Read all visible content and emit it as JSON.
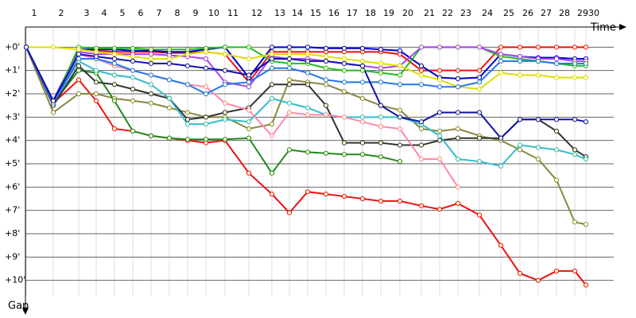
{
  "chart_data": {
    "type": "line",
    "x_label": "Time",
    "y_label": "Gap",
    "x": [
      1,
      35,
      67,
      89,
      112,
      135,
      158,
      181,
      204,
      227,
      251,
      281,
      310,
      332,
      355,
      378,
      401,
      424,
      447,
      471,
      498,
      521,
      544,
      571,
      598,
      622,
      645,
      668,
      691,
      705
    ],
    "xlim": [
      0,
      760
    ],
    "xticks": [
      {
        "value": 1,
        "label": "1"
      },
      {
        "value": 35,
        "label": "2"
      },
      {
        "value": 67,
        "label": "3"
      },
      {
        "value": 89,
        "label": "4"
      },
      {
        "value": 112,
        "label": "5"
      },
      {
        "value": 135,
        "label": "6"
      },
      {
        "value": 158,
        "label": "7"
      },
      {
        "value": 181,
        "label": "8"
      },
      {
        "value": 204,
        "label": "9"
      },
      {
        "value": 227,
        "label": "10"
      },
      {
        "value": 251,
        "label": "11"
      },
      {
        "value": 281,
        "label": "12"
      },
      {
        "value": 310,
        "label": "13"
      },
      {
        "value": 332,
        "label": "14"
      },
      {
        "value": 355,
        "label": "15"
      },
      {
        "value": 378,
        "label": "16"
      },
      {
        "value": 401,
        "label": "17"
      },
      {
        "value": 424,
        "label": "18"
      },
      {
        "value": 447,
        "label": "19"
      },
      {
        "value": 471,
        "label": "20"
      },
      {
        "value": 498,
        "label": "21"
      },
      {
        "value": 521,
        "label": "22"
      },
      {
        "value": 544,
        "label": "23"
      },
      {
        "value": 571,
        "label": "24"
      },
      {
        "value": 598,
        "label": "25"
      },
      {
        "value": 622,
        "label": "26"
      },
      {
        "value": 645,
        "label": "27"
      },
      {
        "value": 668,
        "label": "28"
      },
      {
        "value": 691,
        "label": "29"
      },
      {
        "value": 705,
        "label": "30"
      }
    ],
    "ylim": [
      -1,
      11
    ],
    "yticks": [
      {
        "value": 0,
        "label": "+0'"
      },
      {
        "value": 1,
        "label": "+1'"
      },
      {
        "value": 2,
        "label": "+2'"
      },
      {
        "value": 3,
        "label": "+3'"
      },
      {
        "value": 4,
        "label": "+4'"
      },
      {
        "value": 5,
        "label": "+5'"
      },
      {
        "value": 6,
        "label": "+6'"
      },
      {
        "value": 7,
        "label": "+7'"
      },
      {
        "value": 8,
        "label": "+8'"
      },
      {
        "value": 9,
        "label": "+9'"
      },
      {
        "value": 10,
        "label": "+10'"
      }
    ],
    "grid": true,
    "series": [
      {
        "color": "#ee1111",
        "values": [
          0,
          2.4,
          1.4,
          2.3,
          3.5,
          3.6,
          3.8,
          3.9,
          4.0,
          4.1,
          4.0,
          5.4,
          6.3,
          7.1,
          6.2,
          6.3,
          6.4,
          6.5,
          6.6,
          6.6,
          6.8,
          6.95,
          6.7,
          7.2,
          8.5,
          9.7,
          10.0,
          9.6,
          9.6,
          10.2
        ]
      },
      {
        "color": "#ee1111",
        "values": [
          0,
          2.3,
          0.1,
          0.15,
          0.2,
          0.2,
          0.2,
          0.25,
          0.25,
          0.2,
          0.3,
          1.5,
          0.2,
          0.2,
          0.2,
          0.2,
          0.2,
          0.2,
          0.2,
          0.3,
          1.0,
          1.0,
          1.0,
          1.0,
          0,
          0,
          0,
          0,
          0,
          0
        ]
      },
      {
        "color": "#0000cc",
        "values": [
          0,
          2.3,
          0.1,
          0.1,
          0.1,
          0.15,
          0.15,
          0.2,
          0.2,
          0.1,
          0,
          1.3,
          0,
          0,
          0,
          0.05,
          0.05,
          0.05,
          0.1,
          0.15,
          0.8,
          1.3,
          1.35,
          1.3,
          0.3,
          0.4,
          0.45,
          0.45,
          0.5,
          0.5
        ]
      },
      {
        "color": "#22bb22",
        "values": [
          0,
          2.4,
          0,
          0.05,
          0.05,
          0.05,
          0.1,
          0.1,
          0.1,
          0.05,
          0,
          0,
          0.6,
          0.7,
          0.7,
          0.9,
          1.0,
          1.0,
          1.1,
          1.2,
          0,
          0,
          0,
          0,
          0.4,
          0.5,
          0.6,
          0.7,
          0.8,
          0.8
        ]
      },
      {
        "color": "#888844",
        "values": [
          0,
          2.8,
          2.0,
          2.0,
          2.2,
          2.3,
          2.4,
          2.6,
          2.8,
          3.0,
          3.0,
          3.5,
          3.3,
          1.4,
          1.5,
          1.6,
          1.9,
          2.2,
          2.5,
          2.7,
          3.5,
          3.6,
          3.5,
          3.8,
          4.0,
          4.4,
          4.8,
          5.7,
          7.5,
          7.6
        ]
      },
      {
        "color": "#228822",
        "values": [
          0,
          2.4,
          1.0,
          1.1,
          2.3,
          3.6,
          3.8,
          3.9,
          3.95,
          3.95,
          3.95,
          3.9,
          5.4,
          4.4,
          4.5,
          4.55,
          4.6,
          4.6,
          4.7,
          4.9,
          null,
          null,
          null,
          null,
          null,
          null,
          null,
          null,
          null,
          null
        ]
      },
      {
        "color": "#aa44ee",
        "values": [
          0,
          2.4,
          0.2,
          0.3,
          0.3,
          0.3,
          0.3,
          0.35,
          0.4,
          0.5,
          1.5,
          1.7,
          0.4,
          0.5,
          0.5,
          0.6,
          0.7,
          0.8,
          0.9,
          0.8,
          0,
          0,
          0,
          0,
          0.3,
          0.4,
          0.5,
          0.5,
          0.6,
          0.6
        ]
      },
      {
        "color": "#333333",
        "values": [
          0,
          2.5,
          0.8,
          1.5,
          1.6,
          1.8,
          2.0,
          2.2,
          3.1,
          3.0,
          2.8,
          2.6,
          1.6,
          1.6,
          1.6,
          2.5,
          4.1,
          4.1,
          4.1,
          4.2,
          4.2,
          4.0,
          3.9,
          3.9,
          3.9,
          3.1,
          3.1,
          3.6,
          4.4,
          4.7
        ]
      },
      {
        "color": "#33bbcc",
        "values": [
          0,
          2.4,
          0.6,
          1.0,
          1.2,
          1.3,
          1.6,
          2.2,
          3.3,
          3.3,
          3.1,
          3.2,
          2.2,
          2.4,
          2.6,
          2.9,
          3.0,
          3.0,
          3.0,
          3.0,
          3.3,
          3.8,
          4.8,
          4.9,
          5.1,
          4.2,
          4.3,
          4.4,
          4.6,
          4.8
        ]
      },
      {
        "color": "#dddd00",
        "values": [
          0,
          0,
          0.1,
          0.2,
          0.3,
          0.4,
          0.5,
          0.5,
          0.3,
          0.2,
          0.3,
          0.5,
          0.3,
          0.3,
          0.3,
          0.4,
          0.5,
          0.6,
          0.7,
          0.8,
          1.2,
          1.4,
          1.7,
          1.8,
          1.1,
          1.2,
          1.2,
          1.3,
          1.3,
          1.3
        ]
      },
      {
        "color": "#ff88aa",
        "values": [
          0,
          2.4,
          0.3,
          0.5,
          0.8,
          1.0,
          1.2,
          1.4,
          1.6,
          1.7,
          2.4,
          2.7,
          3.8,
          2.8,
          2.9,
          2.9,
          3.0,
          3.2,
          3.4,
          3.5,
          4.8,
          4.8,
          6.0,
          null,
          null,
          null,
          null,
          null,
          null,
          null
        ]
      },
      {
        "color": "#2277ee",
        "values": [
          0,
          2.4,
          0.5,
          0.5,
          0.7,
          1.0,
          1.2,
          1.4,
          1.6,
          2.0,
          1.6,
          1.5,
          0.9,
          0.9,
          1.1,
          1.4,
          1.5,
          1.5,
          1.5,
          1.6,
          1.6,
          1.7,
          1.7,
          1.5,
          0.6,
          0.6,
          0.6,
          0.7,
          0.7,
          0.7
        ]
      },
      {
        "color": "#1111aa",
        "values": [
          0,
          2.3,
          0.3,
          0.4,
          0.5,
          0.6,
          0.7,
          0.7,
          0.8,
          0.9,
          1.0,
          1.2,
          0.5,
          0.5,
          0.6,
          0.6,
          0.7,
          0.8,
          2.5,
          3.0,
          3.2,
          2.8,
          2.8,
          2.8,
          3.9,
          3.1,
          3.1,
          3.1,
          3.1,
          3.2
        ]
      }
    ]
  }
}
